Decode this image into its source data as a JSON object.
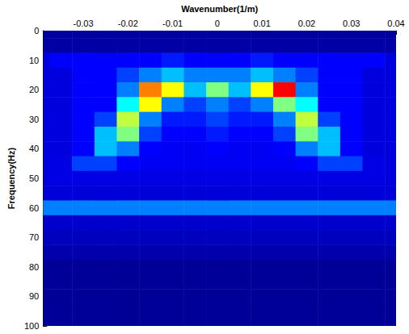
{
  "chart_data": {
    "type": "heatmap",
    "x_label": "Wavenumber(1/m)",
    "y_label": "Frequency(Hz)",
    "xlim": [
      -0.039,
      0.04
    ],
    "xticks": [
      -0.03,
      -0.02,
      -0.01,
      0,
      0.01,
      0.02,
      0.03,
      0.04
    ],
    "ylim": [
      0,
      100
    ],
    "yticks": [
      0,
      10,
      20,
      30,
      40,
      50,
      60,
      70,
      80,
      90,
      100
    ],
    "color_range": [
      0,
      10
    ],
    "x": [
      -0.04,
      -0.035,
      -0.03,
      -0.025,
      -0.02,
      -0.015,
      -0.01,
      -0.005,
      0,
      0.005,
      0.01,
      0.015,
      0.02,
      0.025,
      0.03,
      0.035,
      0.04
    ],
    "y": [
      0,
      5,
      10,
      15,
      20,
      25,
      30,
      35,
      40,
      45,
      50,
      55,
      60,
      65,
      70,
      75,
      80,
      85,
      90,
      95,
      100
    ],
    "values": [
      [
        0.5,
        0.5,
        0.5,
        0.5,
        0.5,
        0.5,
        0.5,
        0.5,
        0.5,
        0.5,
        0.5,
        0.5,
        0.5,
        0.5,
        0.5,
        0.5,
        0.5
      ],
      [
        0.6,
        0.6,
        0.6,
        0.6,
        0.6,
        0.6,
        0.6,
        0.6,
        0.6,
        0.6,
        0.6,
        0.6,
        0.6,
        0.6,
        0.6,
        0.6,
        0.6
      ],
      [
        1.5,
        2,
        2,
        2,
        2,
        2,
        2.2,
        2,
        2,
        2,
        2.2,
        2,
        2,
        2,
        2,
        2,
        1.5
      ],
      [
        1.5,
        1.5,
        2,
        2,
        2.5,
        3,
        3.5,
        3,
        3,
        3,
        3.5,
        3,
        2.5,
        2,
        2,
        1.5,
        1.5
      ],
      [
        1.5,
        1.5,
        2,
        2,
        3,
        7,
        6,
        3.5,
        5,
        3.5,
        6,
        8,
        3,
        2,
        2,
        1.5,
        1.5
      ],
      [
        1.5,
        1.5,
        2,
        2,
        4,
        6,
        3,
        2.5,
        3,
        2.5,
        3,
        5,
        4,
        2,
        2,
        1.5,
        1.5
      ],
      [
        1.5,
        1.5,
        2,
        2.5,
        5.5,
        3,
        2.2,
        2.2,
        2.5,
        2.2,
        2.2,
        3,
        5.5,
        2.5,
        2,
        1.5,
        1.5
      ],
      [
        1.5,
        1.5,
        2,
        3.5,
        5,
        2.5,
        2,
        2,
        2.2,
        2,
        2,
        2.5,
        5,
        3.5,
        2,
        1.5,
        1.5
      ],
      [
        1.5,
        1.5,
        2,
        3.5,
        3,
        2,
        1.8,
        1.8,
        2,
        1.8,
        1.8,
        2,
        3,
        3.5,
        2,
        1.5,
        1.5
      ],
      [
        1.5,
        1.6,
        2.5,
        2.5,
        2,
        1.8,
        1.8,
        1.8,
        1.8,
        1.8,
        1.8,
        1.8,
        2,
        2.5,
        2.5,
        1.6,
        1.5
      ],
      [
        1.5,
        1.6,
        1.6,
        1.6,
        1.6,
        1.6,
        1.6,
        1.6,
        1.6,
        1.6,
        1.6,
        1.6,
        1.6,
        1.6,
        1.6,
        1.6,
        1.5
      ],
      [
        1.4,
        1.4,
        1.4,
        1.4,
        1.4,
        1.4,
        1.4,
        1.4,
        1.4,
        1.4,
        1.4,
        1.4,
        1.4,
        1.4,
        1.4,
        1.4,
        1.4
      ],
      [
        3,
        3,
        3,
        3,
        3,
        3,
        3,
        3,
        3,
        3,
        3,
        3,
        3,
        3,
        3,
        3,
        3
      ],
      [
        1.2,
        1.2,
        1.2,
        1.2,
        1.2,
        1.2,
        1.2,
        1.2,
        1.2,
        1.2,
        1.2,
        1.2,
        1.2,
        1.2,
        1.2,
        1.2,
        1.2
      ],
      [
        1,
        1,
        1,
        1,
        1,
        1,
        1,
        1,
        1,
        1,
        1,
        1,
        1,
        1,
        1,
        1,
        1
      ],
      [
        0.7,
        0.7,
        0.7,
        0.7,
        0.7,
        0.7,
        0.7,
        0.7,
        0.7,
        0.7,
        0.7,
        0.7,
        0.7,
        0.7,
        0.7,
        0.7,
        0.7
      ],
      [
        0.4,
        0.4,
        0.4,
        0.4,
        0.4,
        0.4,
        0.4,
        0.4,
        0.4,
        0.4,
        0.4,
        0.4,
        0.4,
        0.4,
        0.4,
        0.4,
        0.4
      ],
      [
        0.4,
        0.4,
        0.4,
        0.4,
        0.4,
        0.4,
        0.4,
        0.4,
        0.4,
        0.4,
        0.4,
        0.4,
        0.4,
        0.4,
        0.4,
        0.4,
        0.4
      ],
      [
        0.4,
        0.4,
        0.4,
        0.4,
        0.4,
        0.4,
        0.4,
        0.4,
        0.4,
        0.4,
        0.4,
        0.4,
        0.4,
        0.4,
        0.4,
        0.4,
        0.4
      ],
      [
        0.4,
        0.4,
        0.4,
        0.4,
        0.4,
        0.4,
        0.4,
        0.4,
        0.4,
        0.4,
        0.4,
        0.4,
        0.4,
        0.4,
        0.4,
        0.4,
        0.4
      ],
      [
        0.4,
        0.4,
        0.4,
        0.4,
        0.4,
        0.4,
        0.4,
        0.4,
        0.4,
        0.4,
        0.4,
        0.4,
        0.4,
        0.4,
        0.4,
        0.4,
        0.4
      ]
    ]
  }
}
